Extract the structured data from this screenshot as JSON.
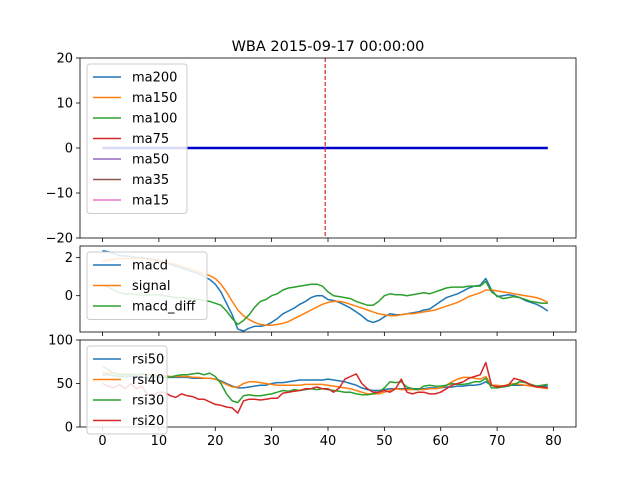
{
  "chart_data": [
    {
      "type": "line",
      "title": "WBA 2015-09-17 00:00:00",
      "xlim": [
        -4,
        84
      ],
      "ylim": [
        -20,
        20
      ],
      "yticks": [
        -20,
        -10,
        0,
        10,
        20
      ],
      "vline_x": 39.5,
      "vline_color": "#d62728",
      "flat_line": {
        "value": 0,
        "x_start": 0,
        "x_end": 79,
        "color": "#0000cc"
      },
      "legend_position": "upper-left",
      "series": [
        {
          "name": "ma200",
          "color": "#1f77b4"
        },
        {
          "name": "ma150",
          "color": "#ff7f0e"
        },
        {
          "name": "ma100",
          "color": "#2ca02c"
        },
        {
          "name": "ma75",
          "color": "#d62728"
        },
        {
          "name": "ma50",
          "color": "#9467bd"
        },
        {
          "name": "ma35",
          "color": "#8c564b"
        },
        {
          "name": "ma15",
          "color": "#e377c2"
        }
      ]
    },
    {
      "type": "line",
      "xlim": [
        -4,
        84
      ],
      "ylim": [
        -1.9,
        2.6
      ],
      "yticks": [
        0,
        2
      ],
      "legend_position": "upper-left",
      "x_start": 0,
      "series": [
        {
          "name": "macd",
          "color": "#1f77b4",
          "values": [
            2.35,
            2.3,
            2.2,
            2.1,
            2.08,
            2.05,
            2.0,
            1.98,
            1.95,
            1.9,
            1.85,
            1.75,
            1.65,
            1.55,
            1.45,
            1.35,
            1.25,
            1.15,
            1.0,
            0.85,
            0.6,
            0.2,
            -0.4,
            -1.0,
            -1.75,
            -1.85,
            -1.7,
            -1.6,
            -1.6,
            -1.55,
            -1.4,
            -1.2,
            -0.95,
            -0.8,
            -0.65,
            -0.45,
            -0.3,
            -0.1,
            0.0,
            0.0,
            -0.2,
            -0.25,
            -0.35,
            -0.5,
            -0.65,
            -0.85,
            -1.05,
            -1.3,
            -1.4,
            -1.3,
            -1.1,
            -0.95,
            -1.0,
            -1.0,
            -0.95,
            -0.9,
            -0.85,
            -0.75,
            -0.7,
            -0.5,
            -0.3,
            -0.1,
            0.0,
            0.1,
            0.25,
            0.4,
            0.5,
            0.55,
            0.9,
            0.3,
            -0.05,
            0.0,
            0.05,
            0.0,
            -0.1,
            -0.25,
            -0.35,
            -0.45,
            -0.6,
            -0.8
          ]
        },
        {
          "name": "signal",
          "color": "#ff7f0e",
          "values": [
            1.8,
            1.85,
            1.9,
            1.95,
            1.95,
            1.95,
            1.95,
            1.95,
            1.9,
            1.85,
            1.8,
            1.75,
            1.7,
            1.65,
            1.55,
            1.45,
            1.35,
            1.25,
            1.15,
            1.05,
            0.9,
            0.6,
            0.2,
            -0.3,
            -0.75,
            -1.05,
            -1.25,
            -1.4,
            -1.5,
            -1.55,
            -1.55,
            -1.5,
            -1.45,
            -1.35,
            -1.2,
            -1.05,
            -0.9,
            -0.75,
            -0.6,
            -0.45,
            -0.35,
            -0.3,
            -0.3,
            -0.35,
            -0.45,
            -0.55,
            -0.65,
            -0.75,
            -0.85,
            -0.95,
            -1.0,
            -1.05,
            -1.05,
            -1.0,
            -0.95,
            -0.95,
            -0.9,
            -0.85,
            -0.8,
            -0.75,
            -0.65,
            -0.55,
            -0.45,
            -0.35,
            -0.2,
            -0.05,
            0.05,
            0.15,
            0.3,
            0.3,
            0.25,
            0.2,
            0.15,
            0.1,
            0.05,
            0.0,
            -0.05,
            -0.1,
            -0.2,
            -0.35
          ]
        },
        {
          "name": "macd_diff",
          "color": "#2ca02c",
          "values": [
            0.55,
            0.45,
            0.3,
            0.15,
            0.1,
            0.1,
            0.05,
            0.03,
            0.05,
            0.05,
            0.05,
            0.0,
            -0.05,
            -0.1,
            -0.1,
            -0.15,
            -0.15,
            -0.2,
            -0.25,
            -0.3,
            -0.4,
            -0.5,
            -0.8,
            -1.2,
            -1.5,
            -1.3,
            -1.0,
            -0.6,
            -0.3,
            -0.2,
            0.0,
            0.1,
            0.3,
            0.4,
            0.45,
            0.5,
            0.55,
            0.6,
            0.6,
            0.5,
            0.2,
            0.0,
            -0.05,
            -0.1,
            -0.15,
            -0.3,
            -0.4,
            -0.5,
            -0.5,
            -0.3,
            0.0,
            0.1,
            0.05,
            0.05,
            0.0,
            0.05,
            0.1,
            0.15,
            0.1,
            0.2,
            0.3,
            0.4,
            0.45,
            0.45,
            0.45,
            0.5,
            0.5,
            0.5,
            0.75,
            0.2,
            0.0,
            -0.15,
            -0.1,
            -0.05,
            -0.1,
            -0.2,
            -0.3,
            -0.35,
            -0.4,
            -0.4
          ]
        }
      ]
    },
    {
      "type": "line",
      "xlim": [
        -4,
        84
      ],
      "ylim": [
        0,
        100
      ],
      "yticks": [
        0,
        50,
        100
      ],
      "xticks": [
        0,
        10,
        20,
        30,
        40,
        50,
        60,
        70,
        80
      ],
      "legend_position": "upper-left",
      "x_start": 0,
      "series": [
        {
          "name": "rsi50",
          "color": "#1f77b4",
          "values": [
            60,
            60,
            59,
            58,
            58,
            58,
            58,
            57,
            57,
            57,
            57,
            57,
            57,
            57,
            57,
            57,
            56,
            56,
            56,
            56,
            55,
            53,
            50,
            47,
            45,
            45,
            46,
            47,
            48,
            48,
            50,
            51,
            51,
            52,
            53,
            54,
            54,
            54,
            54,
            54,
            55,
            54,
            53,
            52,
            50,
            48,
            45,
            43,
            42,
            42,
            43,
            44,
            44,
            44,
            44,
            44,
            44,
            44,
            45,
            45,
            45,
            46,
            46,
            47,
            47,
            48,
            48,
            49,
            52,
            48,
            47,
            47,
            48,
            48,
            48,
            48,
            48,
            47,
            47,
            47
          ]
        },
        {
          "name": "rsi40",
          "color": "#ff7f0e",
          "values": [
            62,
            62,
            62,
            61,
            61,
            61,
            60,
            60,
            60,
            59,
            59,
            59,
            58,
            58,
            58,
            58,
            57,
            57,
            56,
            56,
            55,
            52,
            49,
            46,
            46,
            50,
            52,
            52,
            51,
            50,
            49,
            48,
            48,
            48,
            48,
            48,
            49,
            49,
            49,
            49,
            48,
            47,
            46,
            45,
            44,
            42,
            40,
            38,
            38,
            38,
            40,
            42,
            44,
            43,
            43,
            43,
            43,
            43,
            44,
            44,
            45,
            48,
            52,
            55,
            57,
            57,
            56,
            55,
            58,
            48,
            48,
            47,
            49,
            50,
            49,
            48,
            47,
            46,
            45,
            44
          ]
        },
        {
          "name": "rsi30",
          "color": "#2ca02c",
          "values": [
            70,
            66,
            62,
            60,
            60,
            60,
            60,
            61,
            60,
            60,
            58,
            58,
            57,
            59,
            60,
            60,
            61,
            62,
            60,
            62,
            58,
            50,
            38,
            30,
            28,
            36,
            37,
            36,
            36,
            37,
            38,
            40,
            42,
            41,
            43,
            42,
            43,
            44,
            43,
            44,
            43,
            42,
            41,
            40,
            40,
            38,
            37,
            37,
            38,
            40,
            45,
            52,
            51,
            52,
            46,
            44,
            43,
            47,
            48,
            47,
            47,
            48,
            50,
            49,
            49,
            50,
            52,
            52,
            56,
            45,
            45,
            46,
            47,
            49,
            52,
            51,
            49,
            47,
            48,
            49
          ]
        },
        {
          "name": "rsi20",
          "color": "#d62728",
          "values": [
            50,
            47,
            45,
            49,
            44,
            50,
            44,
            47,
            37,
            37,
            40,
            40,
            36,
            34,
            38,
            36,
            35,
            32,
            32,
            29,
            26,
            25,
            23,
            22,
            16,
            30,
            32,
            32,
            31,
            32,
            33,
            33,
            39,
            40,
            41,
            42,
            44,
            44,
            46,
            44,
            44,
            40,
            45,
            55,
            58,
            61,
            50,
            44,
            40,
            40,
            42,
            40,
            44,
            55,
            40,
            38,
            40,
            40,
            38,
            38,
            40,
            44,
            48,
            50,
            52,
            56,
            58,
            60,
            74,
            48,
            46,
            47,
            48,
            56,
            54,
            52,
            48,
            46,
            46,
            45
          ]
        }
      ]
    }
  ]
}
